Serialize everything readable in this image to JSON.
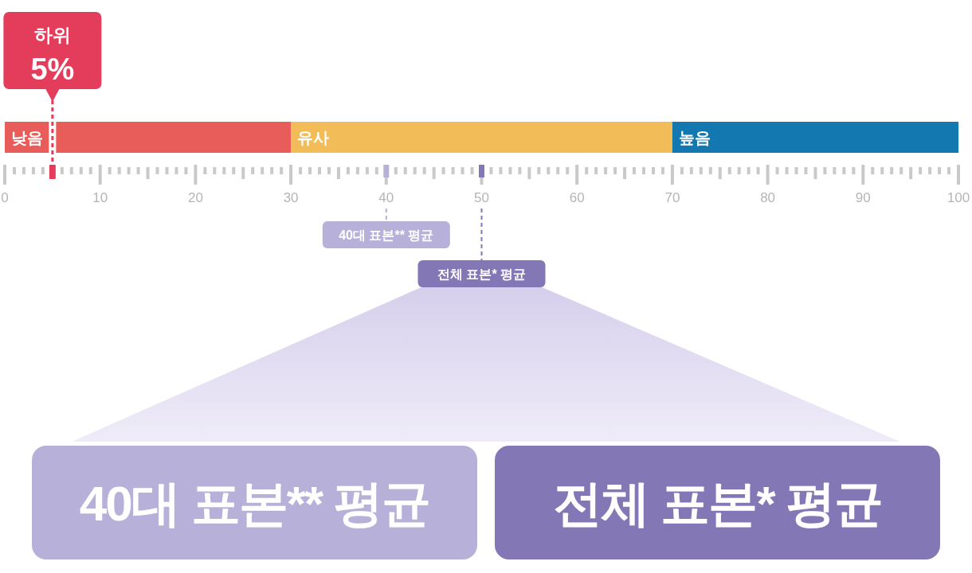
{
  "chart_data": {
    "type": "bar",
    "orientation": "horizontal",
    "stacked": true,
    "categories": [
      null
    ],
    "series": [
      {
        "name": "낮음",
        "color": "#e85d5a",
        "values": [
          30
        ]
      },
      {
        "name": "유사",
        "color": "#f2bd58",
        "values": [
          40
        ]
      },
      {
        "name": "높음",
        "color": "#1478b0",
        "values": [
          30
        ]
      }
    ],
    "xlim": [
      0,
      100
    ],
    "xticks": [
      0,
      10,
      20,
      30,
      40,
      50,
      60,
      70,
      80,
      90,
      100
    ],
    "ref_lines": [
      {
        "axis": "x",
        "value": 5,
        "label": "하위 5%",
        "color": "#e43d5b",
        "line_style": "dashed"
      },
      {
        "axis": "x",
        "value": 40,
        "label": "40대 표본** 평균",
        "color": "#b7b0d8",
        "line_style": "dashed"
      },
      {
        "axis": "x",
        "value": 50,
        "label": "전체 표본* 평균",
        "color": "#8477b6",
        "line_style": "dashed"
      }
    ],
    "annotations": [
      "40대 표본** 평균",
      "전체 표본* 평균"
    ]
  }
}
